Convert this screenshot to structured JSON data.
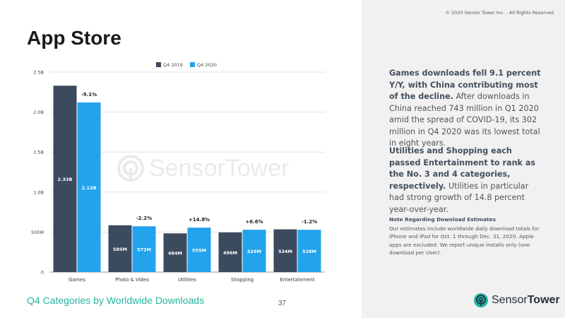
{
  "copyright": "© 2020 Sensor Tower Inc. - All Rights Reserved",
  "page_title": "App Store",
  "subtitle": "Q4 Categories by Worldwide Downloads",
  "page_number": "37",
  "paragraph1": {
    "bold": "Games downloads fell 9.1 percent Y/Y, with China contributing most of the decline.",
    "text": " After downloads in China reached 743 million in Q1 2020 amid the spread of COVID-19, its 302 million in Q4 2020 was its lowest total in eight years."
  },
  "paragraph2": {
    "bold": "Utilities and Shopping each passed Entertainment to rank as the No. 3 and 4 categories, respectively.",
    "text": " Utilities in particular had strong growth of 14.8 percent year-over-year."
  },
  "note": {
    "heading": "Note Regarding Download Estimates",
    "text": "Our estimates include worldwide daily download totals for iPhone and iPad for Oct. 1 through Dec. 31, 2020. Apple apps are excluded. We report unique installs only (one download per User)."
  },
  "logo": {
    "part1": "Sensor",
    "part2": "Tower"
  },
  "watermark": {
    "part1": "Sensor",
    "part2": "Tower"
  },
  "colors": {
    "q4_2019": "#3c4a5e",
    "q4_2020": "#22a3ec",
    "accent": "#25b5a0"
  },
  "chart_data": {
    "type": "bar",
    "categories": [
      "Games",
      "Photo & Video",
      "Utilities",
      "Shopping",
      "Entertainment"
    ],
    "series": [
      {
        "name": "Q4 2019",
        "values": [
          2.33,
          0.585,
          0.484,
          0.496,
          0.534
        ],
        "labels": [
          "2.33B",
          "585M",
          "484M",
          "496M",
          "534M"
        ]
      },
      {
        "name": "Q4 2020",
        "values": [
          2.12,
          0.572,
          0.555,
          0.529,
          0.528
        ],
        "labels": [
          "2.12B",
          "572M",
          "555M",
          "529M",
          "528M"
        ]
      }
    ],
    "changes": [
      "-9.1%",
      "-2.2%",
      "+14.8%",
      "+6.6%",
      "-1.2%"
    ],
    "yticks": [
      "0",
      "500M",
      "1.0B",
      "1.5B",
      "2.0B",
      "2.5B"
    ],
    "ylim": [
      0,
      2.5
    ],
    "legend_position": "top-center",
    "grid": true
  }
}
